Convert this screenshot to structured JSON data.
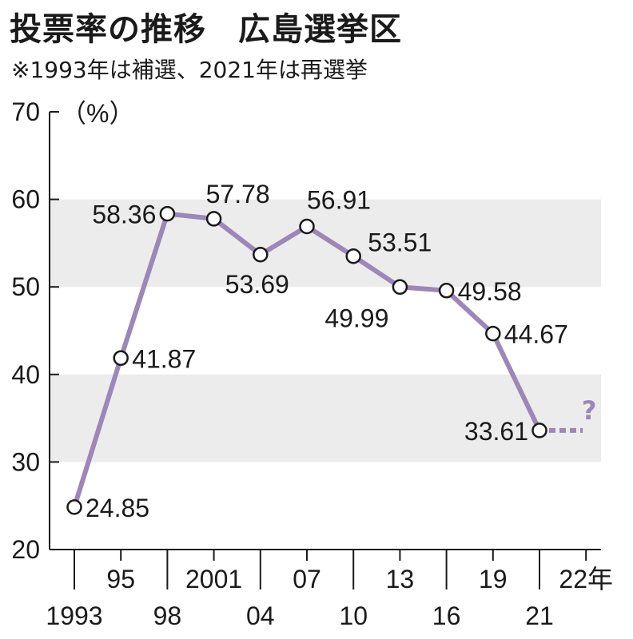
{
  "chart_data": {
    "type": "line",
    "title": "投票率の推移",
    "title_region": "広島選挙区",
    "subtitle": "※1993年は補選、2021年は再選挙",
    "ylabel": "（%）",
    "ylim": [
      20,
      70
    ],
    "y_ticks": [
      "20",
      "30",
      "40",
      "50",
      "60",
      "70"
    ],
    "shaded_bands": [
      [
        30,
        40
      ],
      [
        50,
        60
      ]
    ],
    "x_slots": [
      1993,
      1995,
      1998,
      2001,
      2004,
      2007,
      2010,
      2013,
      2016,
      2019,
      2021,
      2022
    ],
    "x_tick_labels": [
      {
        "year": 1993,
        "label": "1993",
        "row": "lower"
      },
      {
        "year": 1995,
        "label": "95",
        "row": "upper"
      },
      {
        "year": 1998,
        "label": "98",
        "row": "lower"
      },
      {
        "year": 2001,
        "label": "2001",
        "row": "upper"
      },
      {
        "year": 2004,
        "label": "04",
        "row": "lower"
      },
      {
        "year": 2007,
        "label": "07",
        "row": "upper"
      },
      {
        "year": 2010,
        "label": "10",
        "row": "lower"
      },
      {
        "year": 2013,
        "label": "13",
        "row": "upper"
      },
      {
        "year": 2016,
        "label": "16",
        "row": "lower"
      },
      {
        "year": 2019,
        "label": "19",
        "row": "upper"
      },
      {
        "year": 2021,
        "label": "21",
        "row": "lower"
      },
      {
        "year": 2022,
        "label": "22年",
        "row": "upper"
      }
    ],
    "points": [
      {
        "year": 1993,
        "value": 24.85,
        "label": "24.85"
      },
      {
        "year": 1995,
        "value": 41.87,
        "label": "41.87"
      },
      {
        "year": 1998,
        "value": 58.36,
        "label": "58.36"
      },
      {
        "year": 2001,
        "value": 57.78,
        "label": "57.78"
      },
      {
        "year": 2004,
        "value": 53.69,
        "label": "53.69"
      },
      {
        "year": 2007,
        "value": 56.91,
        "label": "56.91"
      },
      {
        "year": 2010,
        "value": 53.51,
        "label": "53.51"
      },
      {
        "year": 2013,
        "value": 49.99,
        "label": "49.99"
      },
      {
        "year": 2016,
        "value": 49.58,
        "label": "49.58"
      },
      {
        "year": 2019,
        "value": 44.67,
        "label": "44.67"
      },
      {
        "year": 2021,
        "value": 33.61,
        "label": "33.61"
      }
    ],
    "projection": {
      "from_year": 2021,
      "to_year": 2022,
      "value": 33.61,
      "marker": "?"
    },
    "line_color": "#9b87b8",
    "band_color": "#ececec"
  }
}
